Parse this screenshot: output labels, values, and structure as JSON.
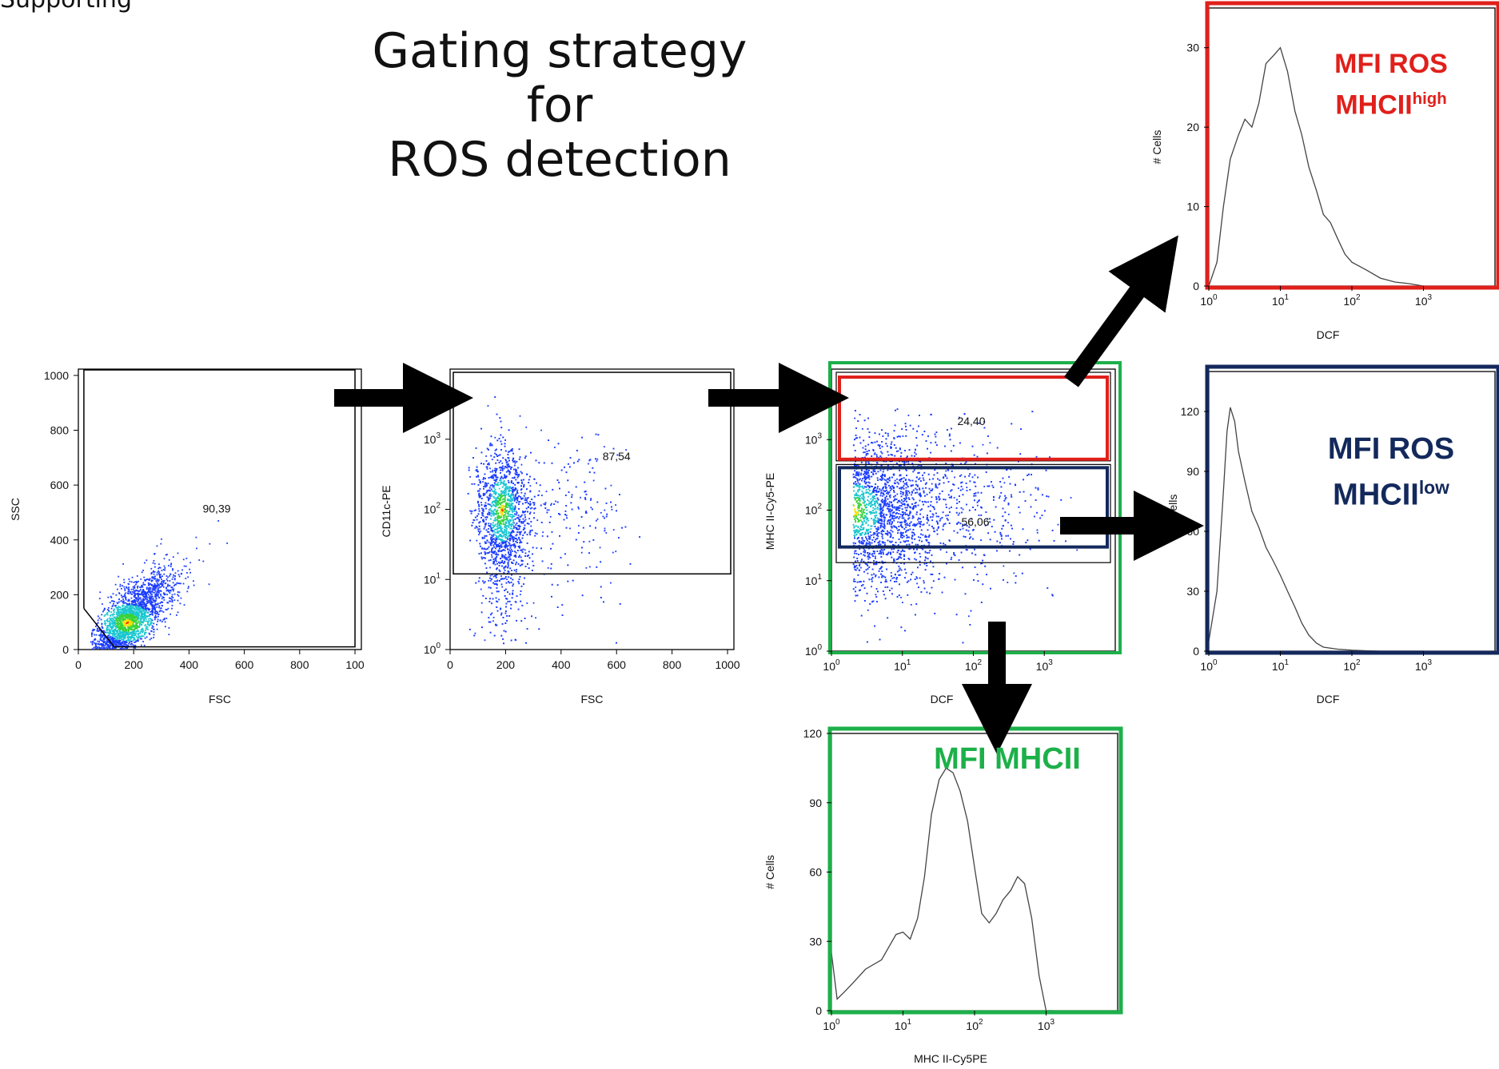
{
  "figure": {
    "corner_text": "Supporting",
    "title_line1": "Gating strategy for",
    "title_line2": "ROS detection",
    "colors": {
      "red": "#e0201b",
      "navy": "#13295c",
      "green": "#1db04a",
      "black": "#000000"
    }
  },
  "panels": {
    "fsc_ssc": {
      "gate_value": "90,39",
      "xlabel": "FSC",
      "ylabel": "SSC",
      "xticks": [
        "0",
        "200",
        "400",
        "600",
        "800",
        "100"
      ],
      "yticks": [
        "0",
        "200",
        "400",
        "600",
        "800",
        "1000"
      ]
    },
    "fsc_cd11c": {
      "gate_value": "87,54",
      "xlabel": "FSC",
      "ylabel": "CD11c-PE",
      "xticks": [
        "0",
        "200",
        "400",
        "600",
        "800",
        "1000"
      ]
    },
    "dcf_mhc": {
      "high_gate_value": "24,40",
      "low_gate_value": "56,06",
      "xlabel": "DCF",
      "ylabel": "MHC II-Cy5-PE"
    },
    "hist_high": {
      "overlay_line1": "MFI ROS",
      "overlay_base": "MHCII",
      "overlay_sup": "high",
      "xlabel": "DCF",
      "ylabel": "# Cells",
      "yticks": [
        "0",
        "10",
        "20",
        "30"
      ]
    },
    "hist_low": {
      "overlay_line1": "MFI ROS",
      "overlay_base": "MHCII",
      "overlay_sup": "low",
      "xlabel": "DCF",
      "ylabel": "# Cells",
      "yticks": [
        "0",
        "30",
        "60",
        "90",
        "120"
      ]
    },
    "hist_mhc": {
      "overlay": "MFI MHCII",
      "xlabel": "MHC II-Cy5PE",
      "ylabel": "# Cells",
      "yticks": [
        "0",
        "30",
        "60",
        "90",
        "120"
      ]
    }
  },
  "chart_data": [
    {
      "type": "scatter",
      "panel": "FSC vs SSC",
      "xlabel": "FSC",
      "ylabel": "SSC",
      "xlim": [
        0,
        1023
      ],
      "ylim": [
        0,
        1023
      ],
      "population_center": {
        "x": 175,
        "y": 100
      },
      "gate": {
        "name": "90,39",
        "percent": 90.39
      }
    },
    {
      "type": "scatter",
      "panel": "FSC vs CD11c-PE",
      "xlabel": "FSC",
      "ylabel": "CD11c-PE",
      "xlim": [
        0,
        1023
      ],
      "y_scale": "log",
      "ylim": [
        1,
        10000
      ],
      "population_center": {
        "x": 185,
        "y": 100
      },
      "gate": {
        "name": "87,54",
        "percent": 87.54,
        "y_min": 12
      }
    },
    {
      "type": "scatter",
      "panel": "DCF vs MHC II-Cy5-PE",
      "xlabel": "DCF",
      "ylabel": "MHC II-Cy5-PE",
      "x_scale": "log",
      "y_scale": "log",
      "xlim": [
        1,
        10000
      ],
      "ylim": [
        1,
        10000
      ],
      "population_center": {
        "x": 2,
        "y": 100
      },
      "gates": [
        {
          "name": "MHCII high",
          "percent": 24.4,
          "y_range": [
            500,
            10000
          ]
        },
        {
          "name": "MHCII low",
          "percent": 56.06,
          "y_range": [
            30,
            400
          ]
        }
      ]
    },
    {
      "type": "line",
      "panel": "MFI ROS MHCII high",
      "xlabel": "DCF",
      "ylabel": "# Cells",
      "x_scale": "log",
      "xlim": [
        1,
        10000
      ],
      "ylim": [
        0,
        35
      ],
      "x": [
        1,
        1.3,
        1.6,
        2,
        2.6,
        3.2,
        4,
        5,
        6.3,
        8,
        10,
        12.6,
        16,
        20,
        25,
        32,
        40,
        50,
        63,
        80,
        100,
        160,
        250,
        400,
        630,
        1000
      ],
      "y": [
        0,
        3,
        10,
        16,
        19,
        21,
        20,
        23,
        28,
        29,
        30,
        27,
        22,
        19,
        15,
        12,
        9,
        8,
        6,
        4,
        3,
        2,
        1,
        0.5,
        0.3,
        0
      ]
    },
    {
      "type": "line",
      "panel": "MFI ROS MHCII low",
      "xlabel": "DCF",
      "ylabel": "# Cells",
      "x_scale": "log",
      "xlim": [
        1,
        10000
      ],
      "ylim": [
        0,
        140
      ],
      "x": [
        1,
        1.3,
        1.6,
        1.8,
        2,
        2.3,
        2.6,
        3.2,
        4,
        5,
        6.3,
        8,
        10,
        12.6,
        16,
        20,
        25,
        32,
        40,
        63,
        100,
        160,
        250,
        1000
      ],
      "y": [
        5,
        30,
        80,
        110,
        122,
        115,
        100,
        85,
        70,
        62,
        52,
        45,
        38,
        30,
        22,
        14,
        8,
        4,
        2,
        1,
        0.5,
        0.2,
        0,
        0
      ]
    },
    {
      "type": "line",
      "panel": "MFI MHCII",
      "xlabel": "MHC II-Cy5PE",
      "ylabel": "# Cells",
      "x_scale": "log",
      "xlim": [
        1,
        10000
      ],
      "ylim": [
        0,
        120
      ],
      "x": [
        1,
        1.2,
        1.5,
        2,
        3,
        5,
        8,
        10,
        12.6,
        16,
        20,
        25,
        32,
        40,
        50,
        63,
        80,
        100,
        126,
        160,
        200,
        250,
        320,
        400,
        500,
        630,
        800,
        1000,
        1260
      ],
      "y": [
        25,
        5,
        8,
        12,
        18,
        22,
        33,
        34,
        31,
        40,
        58,
        85,
        100,
        105,
        103,
        95,
        82,
        62,
        42,
        38,
        42,
        48,
        52,
        58,
        55,
        40,
        15,
        0,
        0
      ]
    }
  ]
}
